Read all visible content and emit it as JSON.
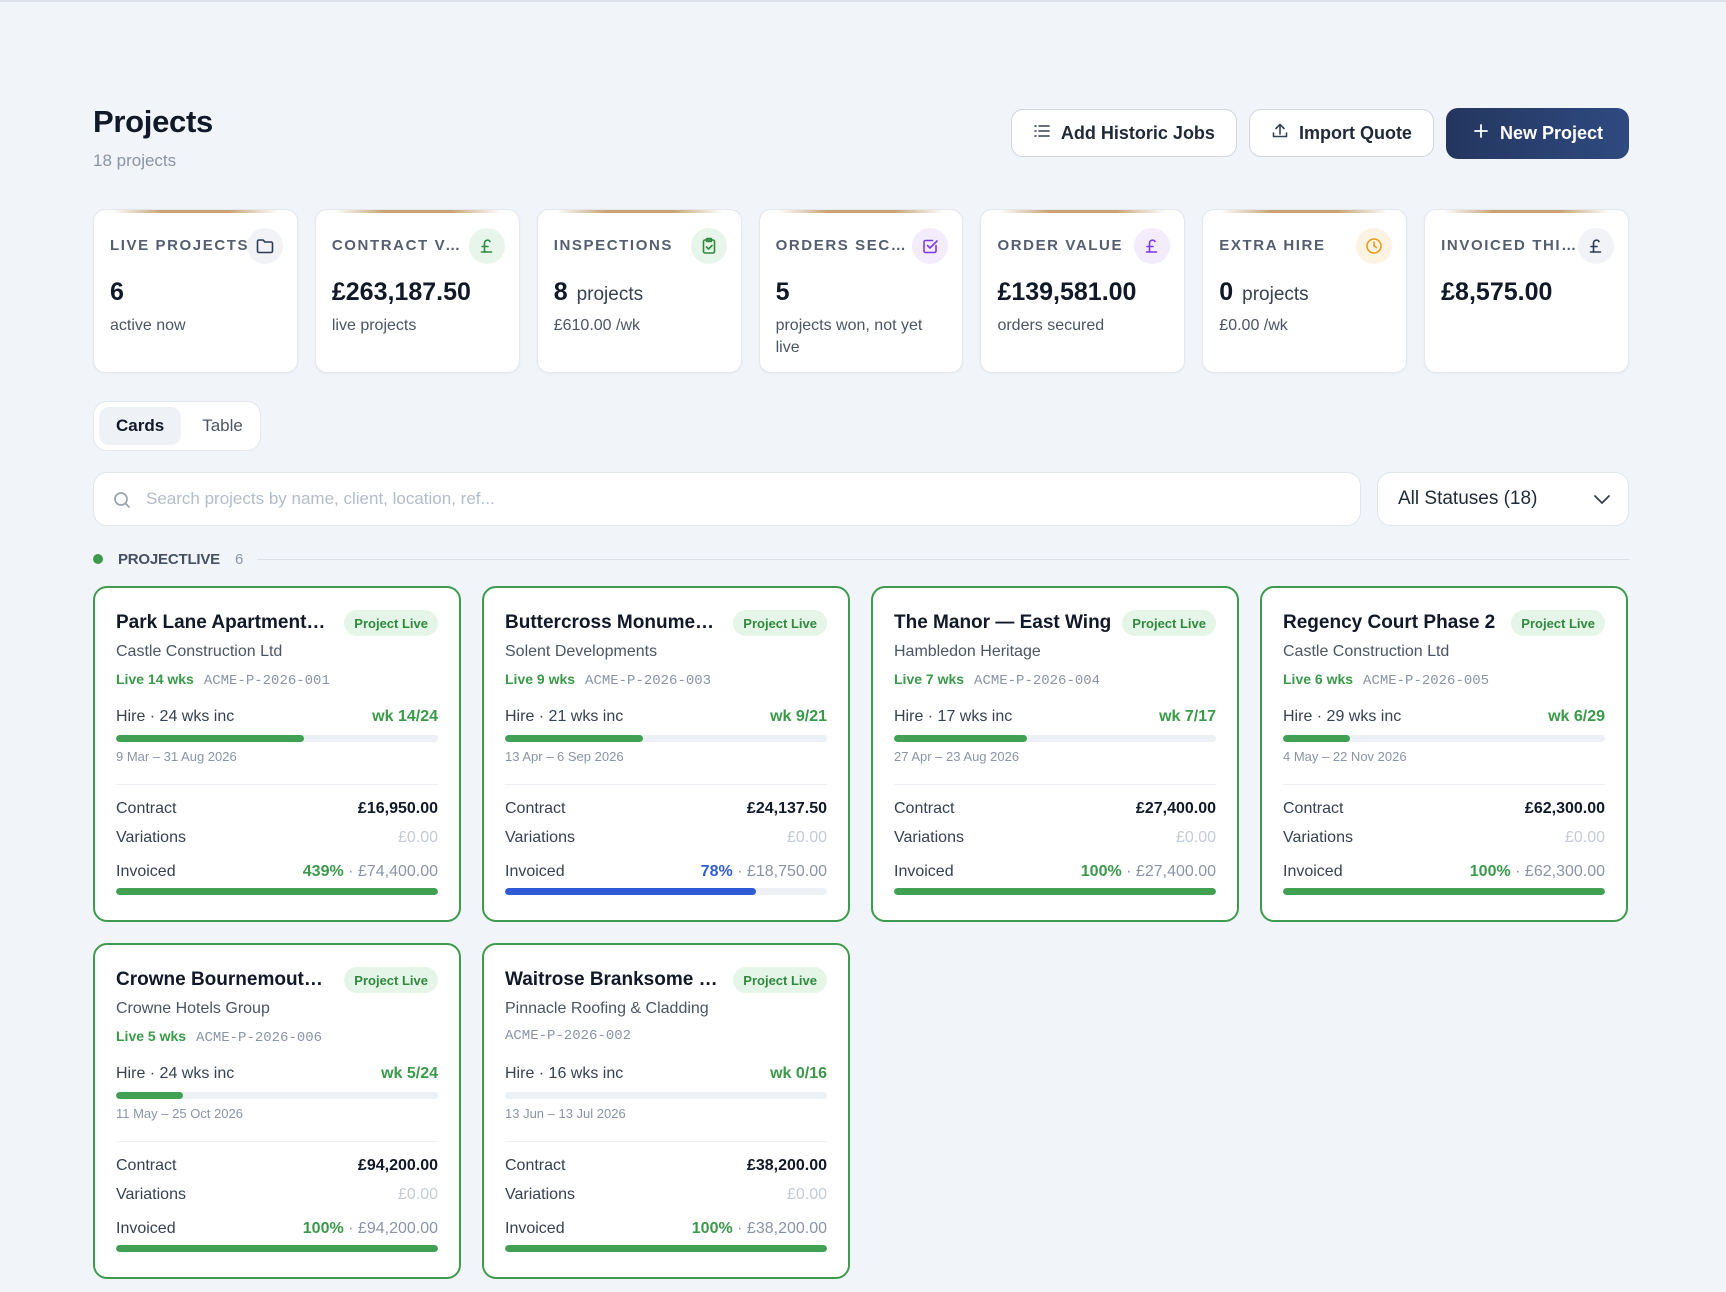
{
  "header": {
    "title": "Projects",
    "subtitle": "18 projects",
    "buttons": {
      "historic": "Add Historic Jobs",
      "import": "Import Quote",
      "new": "New Project"
    }
  },
  "stats": [
    {
      "label": "LIVE PROJECTS",
      "value": "6",
      "unit": "",
      "sub": "active now",
      "icon": "folder-icon",
      "icon_color": "#2b3a55",
      "icon_bg": "#f1f3f6"
    },
    {
      "label": "CONTRACT VALUE",
      "value": "£263,187.50",
      "unit": "",
      "sub": "live projects",
      "icon": "pound-icon",
      "icon_color": "#2f8a3f",
      "icon_bg": "#e8f5ea"
    },
    {
      "label": "INSPECTIONS",
      "value": "8",
      "unit": "projects",
      "sub": "£610.00 /wk",
      "icon": "clipboard-check-icon",
      "icon_color": "#2f8a3f",
      "icon_bg": "#e8f5ea"
    },
    {
      "label": "ORDERS SECURED",
      "value": "5",
      "unit": "",
      "sub": "projects won, not yet live",
      "icon": "checkbox-icon",
      "icon_color": "#7c3aed",
      "icon_bg": "#f2ecfd"
    },
    {
      "label": "ORDER VALUE",
      "value": "£139,581.00",
      "unit": "",
      "sub": "orders secured",
      "icon": "pound-icon",
      "icon_color": "#7c3aed",
      "icon_bg": "#f2ecfd"
    },
    {
      "label": "EXTRA HIRE",
      "value": "0",
      "unit": "projects",
      "sub": "£0.00 /wk",
      "icon": "clock-icon",
      "icon_color": "#e59b1a",
      "icon_bg": "#fdf3e2"
    },
    {
      "label": "INVOICED THIS MONTH",
      "value": "£8,575.00",
      "unit": "",
      "sub": "",
      "icon": "pound-icon",
      "icon_color": "#2b3a55",
      "icon_bg": "#f1f3f6"
    }
  ],
  "view_toggle": {
    "cards": "Cards",
    "table": "Table",
    "active": "cards"
  },
  "search": {
    "placeholder": "Search projects by name, client, location, ref...",
    "value": ""
  },
  "status_filter": {
    "selected": "All Statuses (18)"
  },
  "group": {
    "label": "PROJECTLIVE",
    "count": "6",
    "color": "#3d9a4d"
  },
  "labels": {
    "contract": "Contract",
    "variations": "Variations",
    "invoiced": "Invoiced"
  },
  "projects": [
    {
      "name": "Park Lane Apartments Refurbishment",
      "badge": "Project Live",
      "client": "Castle Construction Ltd",
      "live": "Live 14 wks",
      "ref": "ACME-P-2026-001",
      "hire": "Hire · 24 wks inc",
      "week": "wk 14/24",
      "hire_progress": 0.583,
      "dates": "9 Mar – 31 Aug 2026",
      "contract": "£16,950.00",
      "variations": "£0.00",
      "invoiced_pct": "439%",
      "invoiced_amount": " · £74,400.00",
      "invoiced_progress": 1.0,
      "invoiced_color": "#41a052"
    },
    {
      "name": "Buttercross Monument Restoration",
      "badge": "Project Live",
      "client": "Solent Developments",
      "live": "Live 9 wks",
      "ref": "ACME-P-2026-003",
      "hire": "Hire · 21 wks inc",
      "week": "wk 9/21",
      "hire_progress": 0.429,
      "dates": "13 Apr – 6 Sep 2026",
      "contract": "£24,137.50",
      "variations": "£0.00",
      "invoiced_pct": "78%",
      "invoiced_amount": " · £18,750.00",
      "invoiced_progress": 0.78,
      "invoiced_color": "#2f5bd6"
    },
    {
      "name": "The Manor — East Wing",
      "badge": "Project Live",
      "client": "Hambledon Heritage",
      "live": "Live 7 wks",
      "ref": "ACME-P-2026-004",
      "hire": "Hire · 17 wks inc",
      "week": "wk 7/17",
      "hire_progress": 0.412,
      "dates": "27 Apr – 23 Aug 2026",
      "contract": "£27,400.00",
      "variations": "£0.00",
      "invoiced_pct": "100%",
      "invoiced_amount": " · £27,400.00",
      "invoiced_progress": 1.0,
      "invoiced_color": "#41a052"
    },
    {
      "name": "Regency Court Phase 2",
      "badge": "Project Live",
      "client": "Castle Construction Ltd",
      "live": "Live 6 wks",
      "ref": "ACME-P-2026-005",
      "hire": "Hire · 29 wks inc",
      "week": "wk 6/29",
      "hire_progress": 0.207,
      "dates": "4 May – 22 Nov 2026",
      "contract": "£62,300.00",
      "variations": "£0.00",
      "invoiced_pct": "100%",
      "invoiced_amount": " · £62,300.00",
      "invoiced_progress": 1.0,
      "invoiced_color": "#41a052"
    },
    {
      "name": "Crowne Bournemouth Hotel",
      "badge": "Project Live",
      "client": "Crowne Hotels Group",
      "live": "Live 5 wks",
      "ref": "ACME-P-2026-006",
      "hire": "Hire · 24 wks inc",
      "week": "wk 5/24",
      "hire_progress": 0.208,
      "dates": "11 May – 25 Oct 2026",
      "contract": "£94,200.00",
      "variations": "£0.00",
      "invoiced_pct": "100%",
      "invoiced_amount": " · £94,200.00",
      "invoiced_progress": 1.0,
      "invoiced_color": "#41a052"
    },
    {
      "name": "Waitrose Branksome Roof",
      "badge": "Project Live",
      "client": "Pinnacle Roofing & Cladding",
      "live": "",
      "ref": "ACME-P-2026-002",
      "hire": "Hire · 16 wks inc",
      "week": "wk 0/16",
      "hire_progress": 0.0,
      "dates": "13 Jun – 13 Jul 2026",
      "contract": "£38,200.00",
      "variations": "£0.00",
      "invoiced_pct": "100%",
      "invoiced_amount": " · £38,200.00",
      "invoiced_progress": 1.0,
      "invoiced_color": "#41a052"
    }
  ]
}
